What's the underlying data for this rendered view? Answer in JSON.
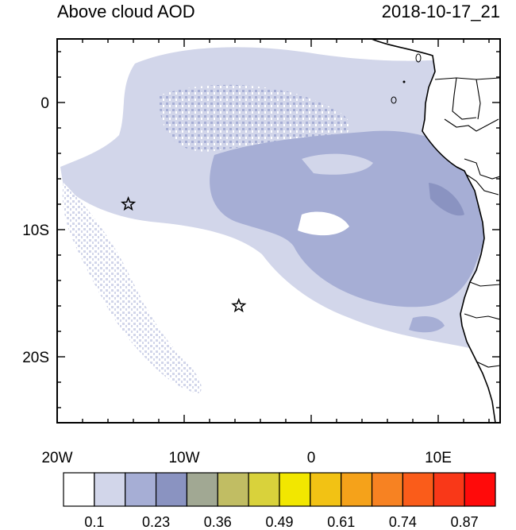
{
  "header": {
    "title": "Above cloud AOD",
    "timestamp": "2018-10-17_21"
  },
  "map": {
    "x_ticks": [
      {
        "lon": -20,
        "label": "20W"
      },
      {
        "lon": -10,
        "label": "10W"
      },
      {
        "lon": 0,
        "label": "0"
      },
      {
        "lon": 10,
        "label": "10E"
      }
    ],
    "y_ticks": [
      {
        "lat": 0,
        "label": "0"
      },
      {
        "lat": -10,
        "label": "10S"
      },
      {
        "lat": -20,
        "label": "20S"
      }
    ],
    "lon_range": [
      -20,
      15
    ],
    "lat_range": [
      -24.5,
      5
    ],
    "markers": [
      {
        "lon": -14.4,
        "lat": -8.0,
        "symbol": "star"
      },
      {
        "lon": -5.7,
        "lat": -16.0,
        "symbol": "star"
      }
    ]
  },
  "colorbar": {
    "colors": [
      "#ffffff",
      "#d2d6ea",
      "#a6aed5",
      "#8a93c1",
      "#a1a893",
      "#c1bd63",
      "#d9d23b",
      "#f2e700",
      "#f2c214",
      "#f5a21a",
      "#f78222",
      "#fa5c1a",
      "#f93818",
      "#ff0a0a"
    ],
    "labels": [
      "0.1",
      "0.23",
      "0.36",
      "0.49",
      "0.61",
      "0.74",
      "0.87"
    ]
  }
}
